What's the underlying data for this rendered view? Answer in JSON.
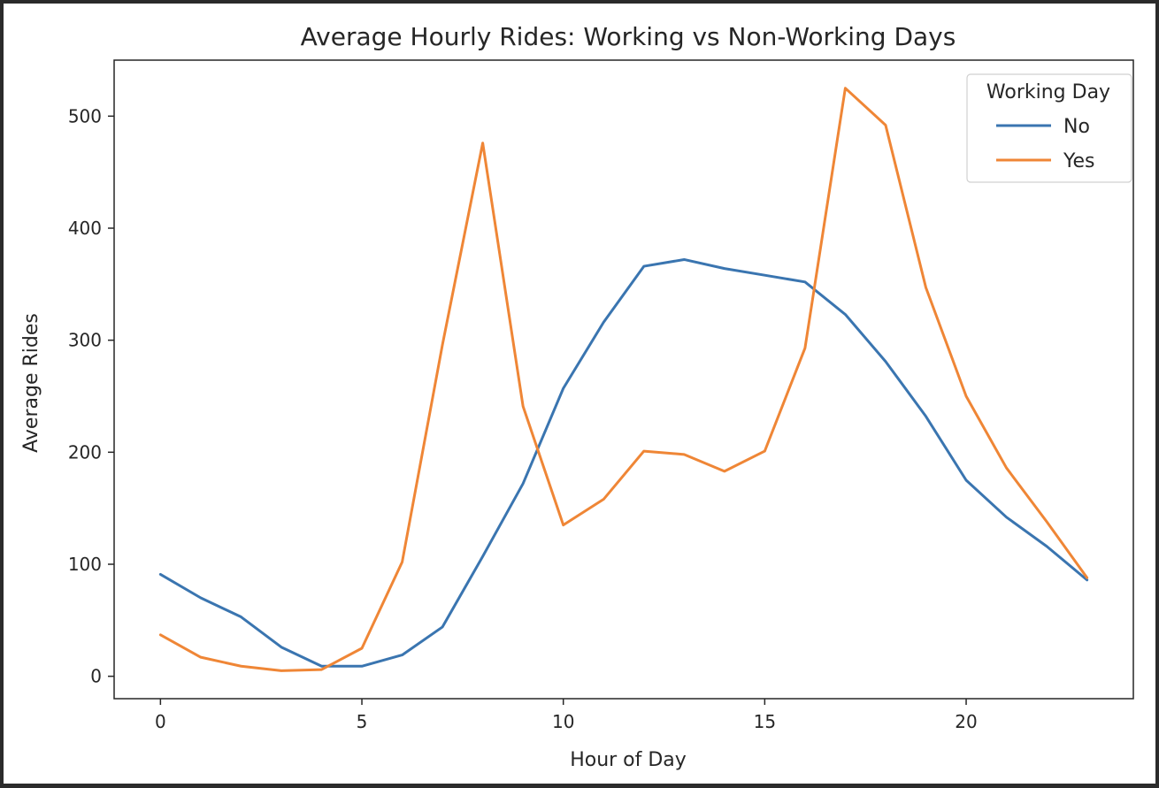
{
  "chart_data": {
    "type": "line",
    "title": "Average Hourly Rides: Working vs Non-Working Days",
    "xlabel": "Hour of Day",
    "ylabel": "Average Rides",
    "xlim": [
      -1.15,
      24.15
    ],
    "ylim": [
      -20,
      550
    ],
    "xticks": [
      0,
      5,
      10,
      15,
      20
    ],
    "yticks": [
      0,
      100,
      200,
      300,
      400,
      500
    ],
    "grid": false,
    "legend": {
      "title": "Working Day",
      "placement": "top-right"
    },
    "x": [
      0,
      1,
      2,
      3,
      4,
      5,
      6,
      7,
      8,
      9,
      10,
      11,
      12,
      13,
      14,
      15,
      16,
      17,
      18,
      19,
      20,
      21,
      22,
      23
    ],
    "series": [
      {
        "name": "No",
        "color": "#3a75b0",
        "values": [
          91,
          70,
          53,
          26,
          9,
          9,
          19,
          44,
          107,
          172,
          257,
          316,
          366,
          372,
          364,
          358,
          352,
          323,
          281,
          232,
          175,
          142,
          116,
          86
        ]
      },
      {
        "name": "Yes",
        "color": "#ef8636",
        "values": [
          37,
          17,
          9,
          5,
          6,
          25,
          102,
          296,
          476,
          241,
          135,
          158,
          201,
          198,
          183,
          201,
          293,
          525,
          492,
          347,
          250,
          186,
          138,
          88
        ]
      }
    ]
  }
}
